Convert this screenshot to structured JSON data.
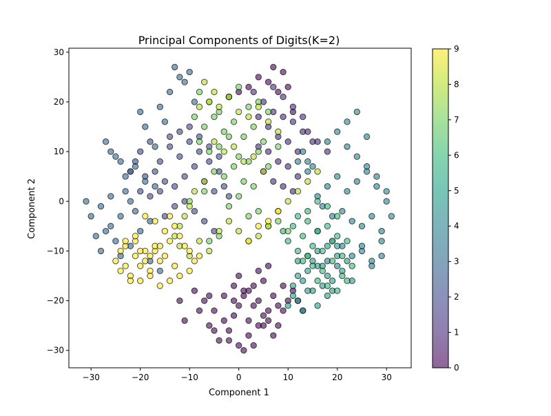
{
  "chart_data": {
    "type": "scatter",
    "title": "Principal Components of Digits(K=2)",
    "xlabel": "Component 1",
    "ylabel": "Component 2",
    "xlim": [
      -34.5,
      35
    ],
    "ylim": [
      -33.5,
      30.8
    ],
    "xticks": [
      -30,
      -20,
      -10,
      0,
      10,
      20,
      30
    ],
    "yticks": [
      -30,
      -20,
      -10,
      0,
      10,
      20,
      30
    ],
    "grid": false,
    "marker_alpha": 0.6,
    "colorbar": {
      "label": "",
      "min": 0,
      "max": 9,
      "ticks": [
        0,
        1,
        2,
        3,
        4,
        5,
        6,
        7,
        8,
        9
      ],
      "colormap": "viridis"
    },
    "colormap_stops": [
      "#440154",
      "#482878",
      "#3e4989",
      "#31688e",
      "#26828e",
      "#1f9e89",
      "#35b779",
      "#6ece58",
      "#b5de2b",
      "#fde725"
    ],
    "series": [
      {
        "label_value": 0,
        "color": "#440154",
        "x": [
          -7,
          -5,
          -3,
          -1,
          1,
          3,
          5,
          7,
          9,
          -6,
          -2,
          2,
          4,
          6,
          8,
          0,
          -4,
          10,
          -8,
          3,
          1,
          -1,
          5,
          7,
          -3,
          0,
          2,
          6,
          4,
          -5,
          -2,
          8,
          1,
          3,
          -6,
          -1,
          5,
          0,
          2,
          4,
          6,
          9,
          -9,
          -11,
          12,
          11,
          13,
          -12,
          7,
          9,
          4,
          6,
          2,
          0,
          -2,
          8,
          10,
          11
        ],
        "y": [
          -20,
          -22,
          -24,
          -20,
          -18,
          -21,
          -23,
          -19,
          -22,
          -25,
          -26,
          -27,
          -25,
          -24,
          -21,
          -29,
          -28,
          -20,
          -22,
          -17,
          -19,
          -23,
          -25,
          -27,
          -19,
          -21,
          -24,
          -22,
          -20,
          -26,
          -28,
          -25,
          -30,
          -29,
          -19,
          -17,
          -16,
          -15,
          -18,
          -14,
          -13,
          -17,
          -18,
          -24,
          -20,
          -18,
          -22,
          -20,
          27,
          26,
          25,
          24,
          23,
          22,
          21,
          22,
          23,
          18
        ]
      },
      {
        "label_value": 1,
        "color": "#482878",
        "x": [
          5,
          7,
          9,
          11,
          13,
          15,
          6,
          8,
          10,
          12,
          4,
          3,
          7,
          9,
          11,
          13,
          14,
          16,
          18,
          6,
          8,
          10,
          12,
          9,
          11,
          7,
          5,
          4
        ],
        "y": [
          20,
          18,
          17,
          16,
          14,
          12,
          15,
          13,
          12,
          10,
          17,
          22,
          23,
          21,
          19,
          17,
          14,
          12,
          10,
          10,
          8,
          7,
          5,
          3,
          2,
          4,
          6,
          11
        ]
      },
      {
        "label_value": 2,
        "color": "#3e4989",
        "x": [
          -20,
          -18,
          -16,
          -14,
          -12,
          -10,
          -8,
          -6,
          -4,
          -19,
          -17,
          -15,
          -13,
          -11,
          -9,
          -7,
          -5,
          -3,
          -2,
          -21,
          -22,
          -12,
          -10,
          -8,
          -14,
          -16,
          -6,
          -4,
          -18,
          -20,
          -11,
          -9,
          -13,
          -15,
          -7,
          -5
        ],
        "y": [
          10,
          12,
          8,
          11,
          9,
          12,
          10,
          8,
          6,
          5,
          6,
          4,
          3,
          5,
          7,
          4,
          2,
          3,
          1,
          8,
          6,
          14,
          15,
          13,
          13,
          2,
          11,
          9,
          1,
          2,
          0,
          -2,
          -1,
          -3,
          -4,
          -6
        ]
      },
      {
        "label_value": 3,
        "color": "#31688e",
        "x": [
          -30,
          -28,
          -26,
          -24,
          -22,
          -25,
          -27,
          -29,
          -23,
          -21,
          -26,
          -28,
          -24,
          -22,
          -20,
          -18,
          -19,
          -17,
          -23,
          -21,
          -31,
          -25,
          -27,
          -15,
          -16,
          -14,
          -12,
          -13,
          -11,
          -10,
          -9,
          -17,
          -19,
          -20,
          -18,
          -16,
          -22,
          -24,
          -26
        ],
        "y": [
          -3,
          -1,
          -5,
          -3,
          0,
          -8,
          -6,
          -7,
          2,
          -2,
          1,
          -10,
          -11,
          -9,
          -6,
          -4,
          4,
          3,
          5,
          7,
          0,
          9,
          12,
          16,
          19,
          22,
          25,
          27,
          24,
          26,
          20,
          11,
          15,
          18,
          -12,
          -14,
          6,
          8,
          10
        ]
      },
      {
        "label_value": 4,
        "color": "#26828e",
        "x": [
          16,
          18,
          20,
          22,
          24,
          26,
          28,
          30,
          17,
          19,
          21,
          23,
          25,
          27,
          29,
          15,
          14,
          13,
          18,
          20,
          22,
          24,
          26,
          28,
          19,
          21,
          23,
          25,
          27,
          29,
          31,
          16,
          18,
          20,
          22,
          24,
          26,
          14,
          12,
          30,
          29,
          27,
          25
        ],
        "y": [
          1,
          3,
          5,
          2,
          4,
          6,
          3,
          2,
          -1,
          -3,
          -2,
          -4,
          -5,
          -3,
          -6,
          7,
          8,
          10,
          12,
          14,
          11,
          9,
          7,
          5,
          -8,
          -9,
          -11,
          -10,
          -12,
          -8,
          -3,
          -6,
          -12,
          -13,
          16,
          18,
          13,
          6,
          8,
          0,
          -11,
          -13,
          -9
        ]
      },
      {
        "label_value": 5,
        "color": "#1f9e89",
        "x": [
          12,
          14,
          16,
          18,
          20,
          13,
          15,
          17,
          19,
          21,
          11,
          12,
          14,
          16,
          18,
          15,
          17,
          13,
          19,
          10,
          11,
          12,
          16,
          18,
          14,
          20,
          22,
          23
        ],
        "y": [
          -12,
          -14,
          -13,
          -15,
          -11,
          -16,
          -18,
          -17,
          -16,
          -14,
          -19,
          -20,
          -18,
          -21,
          -19,
          -12,
          -13,
          -22,
          -18,
          -21,
          -17,
          -15,
          -10,
          -9,
          -11,
          -9,
          -12,
          -16
        ]
      },
      {
        "label_value": 6,
        "color": "#35b779",
        "x": [
          14,
          16,
          18,
          20,
          22,
          15,
          17,
          19,
          21,
          13,
          12,
          14,
          16,
          18,
          20,
          11,
          10,
          9,
          13,
          15,
          17,
          19,
          21,
          23,
          16,
          18,
          20,
          22,
          12,
          14
        ],
        "y": [
          -4,
          -6,
          -5,
          -7,
          -8,
          -9,
          -10,
          -8,
          -11,
          -7,
          -3,
          -2,
          0,
          -1,
          -3,
          -5,
          -8,
          -6,
          -12,
          -13,
          -14,
          -12,
          -15,
          -13,
          -16,
          -17,
          -18,
          -16,
          -10,
          -11
        ]
      },
      {
        "label_value": 7,
        "color": "#6ece58",
        "x": [
          -8,
          -6,
          -4,
          -2,
          0,
          2,
          4,
          6,
          -7,
          -5,
          -3,
          -1,
          1,
          3,
          5,
          -9,
          -8,
          -6,
          -4,
          -2,
          0,
          2,
          4,
          6,
          8,
          -5,
          -3,
          -1,
          1,
          3,
          -7,
          -2,
          0,
          2,
          4,
          6,
          8,
          -10,
          10,
          -6,
          -4
        ],
        "y": [
          22,
          20,
          18,
          21,
          23,
          19,
          20,
          18,
          15,
          17,
          14,
          16,
          13,
          15,
          12,
          17,
          12,
          10,
          11,
          13,
          9,
          8,
          10,
          7,
          11,
          6,
          5,
          7,
          4,
          3,
          2,
          -1,
          1,
          -3,
          -2,
          -5,
          -4,
          0,
          -6,
          -8,
          -7
        ]
      },
      {
        "label_value": 8,
        "color": "#b5de2b",
        "x": [
          -6,
          -4,
          -2,
          0,
          2,
          4,
          6,
          8,
          -8,
          -5,
          -3,
          -1,
          1,
          3,
          5,
          -7,
          -9,
          -10,
          -11,
          -12,
          -13,
          -12,
          -10,
          -8,
          -6,
          -4,
          -2,
          0,
          2,
          4,
          6,
          8,
          10,
          12,
          14,
          16,
          -7,
          -5
        ],
        "y": [
          20,
          19,
          21,
          18,
          17,
          19,
          16,
          14,
          19,
          12,
          10,
          11,
          8,
          9,
          6,
          4,
          2,
          -1,
          -3,
          -5,
          -7,
          -9,
          -11,
          -8,
          -10,
          -6,
          -4,
          -6,
          -8,
          -7,
          -5,
          -2,
          0,
          2,
          4,
          6,
          24,
          22
        ]
      },
      {
        "label_value": 9,
        "color": "#fde725",
        "x": [
          -25,
          -23,
          -21,
          -19,
          -17,
          -24,
          -22,
          -20,
          -18,
          -16,
          -23,
          -21,
          -19,
          -17,
          -15,
          -13,
          -14,
          -12,
          -11,
          -10,
          -22,
          -20,
          -18,
          -16,
          -14,
          -12,
          -10,
          -9,
          -8,
          -13,
          -15,
          -17,
          -19,
          -21,
          -23,
          -24,
          -20,
          -18,
          -16,
          -14,
          2,
          4,
          6,
          8
        ],
        "y": [
          -12,
          -13,
          -11,
          -12,
          -10,
          -14,
          -15,
          -13,
          -14,
          -12,
          -9,
          -8,
          -10,
          -9,
          -11,
          -13,
          -8,
          -7,
          -9,
          -10,
          -16,
          -16,
          -15,
          -17,
          -16,
          -15,
          -14,
          -12,
          -11,
          -5,
          -6,
          -4,
          -3,
          -7,
          -8,
          -10,
          -10,
          -11,
          -9,
          -3,
          -8,
          -5,
          -4,
          -2
        ]
      }
    ]
  }
}
